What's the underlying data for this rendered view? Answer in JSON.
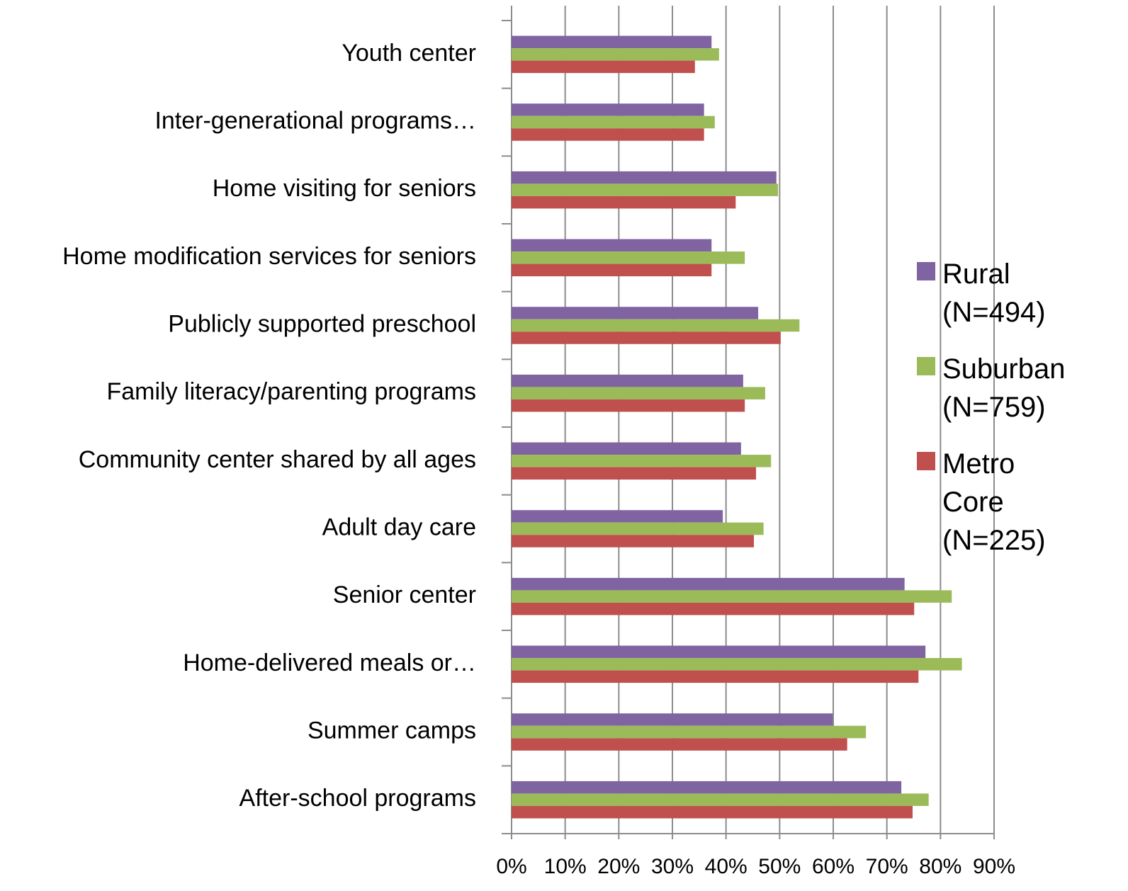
{
  "chart_data": {
    "type": "bar",
    "orientation": "horizontal",
    "categories": [
      "Youth center",
      "Inter-generational  programs…",
      "Home visiting for seniors",
      "Home modification services for seniors",
      "Publicly supported preschool",
      "Family literacy/parenting programs",
      "Community center shared by all ages",
      "Adult day care",
      "Senior center",
      "Home-delivered meals or…",
      "Summer camps",
      "After-school programs"
    ],
    "series": [
      {
        "name": "Rural (N=494)",
        "color": "#8064a2",
        "values": [
          37.3,
          35.9,
          49.4,
          37.3,
          46.0,
          43.2,
          42.8,
          39.4,
          73.3,
          77.2,
          59.9,
          72.7
        ]
      },
      {
        "name": "Suburban (N=759)",
        "color": "#9bbb59",
        "values": [
          38.7,
          37.9,
          49.7,
          43.5,
          53.7,
          47.3,
          48.4,
          47.0,
          82.1,
          84.0,
          66.1,
          77.8
        ]
      },
      {
        "name": "Metro Core (N=225)",
        "color": "#c0504d",
        "values": [
          34.2,
          35.9,
          41.8,
          37.3,
          50.2,
          43.5,
          45.6,
          45.2,
          75.1,
          75.9,
          62.6,
          74.8
        ]
      }
    ],
    "xlim": [
      0,
      90
    ],
    "xticks": [
      {
        "value": 0,
        "label": "0%"
      },
      {
        "value": 10,
        "label": "10%"
      },
      {
        "value": 20,
        "label": "20%"
      },
      {
        "value": 30,
        "label": "30%"
      },
      {
        "value": 40,
        "label": "40%"
      },
      {
        "value": 50,
        "label": "50%"
      },
      {
        "value": 60,
        "label": "60%"
      },
      {
        "value": 70,
        "label": "70%"
      },
      {
        "value": 80,
        "label": "80%"
      },
      {
        "value": 90,
        "label": "90%"
      }
    ],
    "grid": true,
    "legend": "right"
  }
}
